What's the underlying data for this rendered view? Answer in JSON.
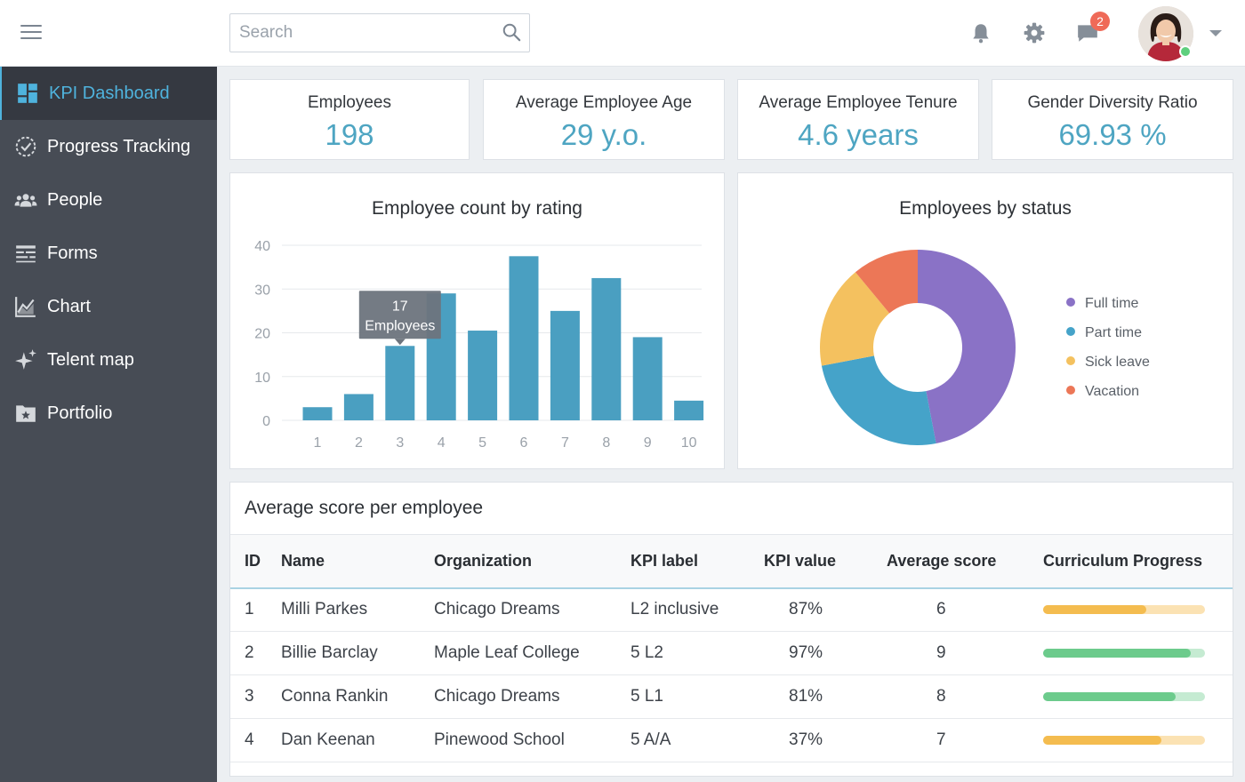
{
  "header": {
    "search_placeholder": "Search",
    "notification_count": "2"
  },
  "sidebar": {
    "items": [
      {
        "label": "KPI Dashboard",
        "icon": "dashboard-icon",
        "active": true
      },
      {
        "label": "Progress Tracking",
        "icon": "progress-icon"
      },
      {
        "label": "People",
        "icon": "people-icon"
      },
      {
        "label": "Forms",
        "icon": "forms-icon"
      },
      {
        "label": "Chart",
        "icon": "chart-icon"
      },
      {
        "label": "Telent map",
        "icon": "sparkle-icon"
      },
      {
        "label": "Portfolio",
        "icon": "portfolio-icon"
      }
    ]
  },
  "kpis": [
    {
      "title": "Employees",
      "value": "198"
    },
    {
      "title": "Average Employee Age",
      "value": "29 y.o."
    },
    {
      "title": "Average Employee Tenure",
      "value": "4.6 years"
    },
    {
      "title": "Gender Diversity Ratio",
      "value": "69.93 %"
    }
  ],
  "chart_data": [
    {
      "type": "bar",
      "title": "Employee count by rating",
      "categories": [
        "1",
        "2",
        "3",
        "4",
        "5",
        "6",
        "7",
        "8",
        "9",
        "10"
      ],
      "values": [
        3,
        6,
        17,
        29,
        20.5,
        37.5,
        25,
        32.5,
        19,
        4.5
      ],
      "ylim": [
        0,
        40
      ],
      "yticks": [
        "0",
        "10",
        "20",
        "30",
        "40"
      ],
      "grid": true,
      "color": "#4a9fc1",
      "tooltip": {
        "category": "3",
        "line1": "17",
        "line2": "Employees"
      }
    },
    {
      "type": "pie",
      "title": "Employees by status",
      "labels": [
        "Full time",
        "Part time",
        "Sick leave",
        "Vacation"
      ],
      "values": [
        47,
        25,
        17,
        11
      ],
      "colors": [
        "#8a72c6",
        "#45a3c9",
        "#f4c15f",
        "#ec7757"
      ],
      "donut": true,
      "legend": "right"
    }
  ],
  "table": {
    "title": "Average score per employee",
    "columns": [
      "ID",
      "Name",
      "Organization",
      "KPI label",
      "KPI value",
      "Average score",
      "Curriculum Progress"
    ],
    "rows": [
      {
        "id": "1",
        "name": "Milli Parkes",
        "org": "Chicago Dreams",
        "label": "L2 inclusive",
        "kpi": "87%",
        "score": "6",
        "progress": 0.64,
        "color": "#f4bc4f",
        "track": "#fbe2b3"
      },
      {
        "id": "2",
        "name": "Billie Barclay",
        "org": "Maple Leaf College",
        "label": "5 L2",
        "kpi": "97%",
        "score": "9",
        "progress": 0.91,
        "color": "#6ccb8c",
        "track": "#c5ebd2"
      },
      {
        "id": "3",
        "name": "Conna Rankin",
        "org": "Chicago Dreams",
        "label": "5 L1",
        "kpi": "81%",
        "score": "8",
        "progress": 0.82,
        "color": "#6ccb8c",
        "track": "#c5ebd2"
      },
      {
        "id": "4",
        "name": "Dan Keenan",
        "org": "Pinewood School",
        "label": "5 A/A",
        "kpi": "37%",
        "score": "7",
        "progress": 0.73,
        "color": "#f4bc4f",
        "track": "#fbe2b3"
      }
    ]
  }
}
